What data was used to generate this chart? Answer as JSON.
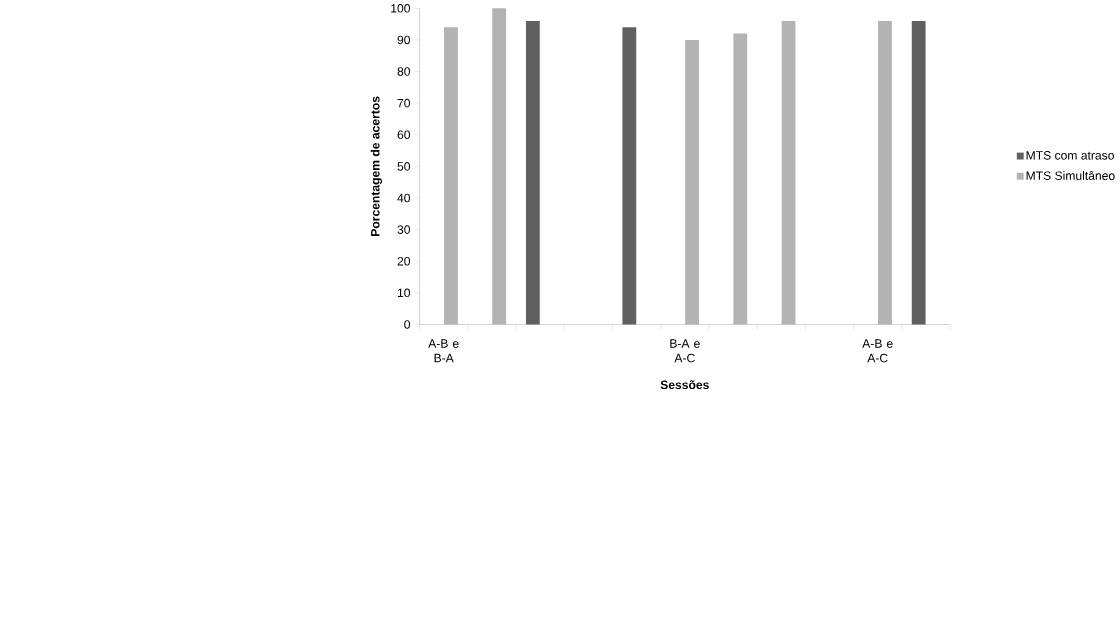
{
  "chart_data": {
    "type": "bar",
    "xlabel": "Sessões",
    "ylabel": "Porcentagem de acertos",
    "categories": [
      "A-B e B-A",
      null,
      null,
      null,
      null,
      "B-A e A-C",
      null,
      null,
      null,
      "A-B e A-C",
      null
    ],
    "series": [
      {
        "name": "MTS com atraso",
        "color": "#606060",
        "values": [
          null,
          null,
          96,
          null,
          94,
          null,
          null,
          null,
          null,
          null,
          96
        ]
      },
      {
        "name": "MTS Simultâneo",
        "color": "#b3b3b3",
        "values": [
          94,
          100,
          null,
          null,
          null,
          90,
          92,
          96,
          null,
          96,
          null
        ]
      }
    ],
    "ylim": [
      0,
      100
    ],
    "yticks": [
      0,
      10,
      20,
      30,
      40,
      50,
      60,
      70,
      80,
      90,
      100
    ],
    "grid": false,
    "legend": "right"
  }
}
